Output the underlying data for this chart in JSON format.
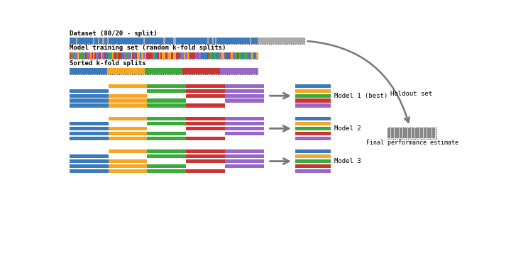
{
  "bg_color": "#ffffff",
  "colors": {
    "blue": "#3a7abf",
    "orange": "#f5a623",
    "green": "#3aaa3a",
    "red": "#cc3333",
    "purple": "#9966cc",
    "gray": "#aaaaaa",
    "dark_gray": "#777777",
    "light_gray": "#bbbbbb"
  },
  "labels": {
    "dataset": "Dataset (80/20 - split)",
    "training": "Model training set (random k-fold splits)",
    "sorted": "Sorted k-fold splits",
    "model1": "Model 1 (best)",
    "model2": "Model 2",
    "model3": "Model 3",
    "holdout": "Holdout set",
    "final": "Final performance estimate"
  },
  "n_folds": 5,
  "fold_colors": [
    "#3a7abf",
    "#f5a623",
    "#3aaa3a",
    "#cc3333",
    "#9966cc"
  ]
}
